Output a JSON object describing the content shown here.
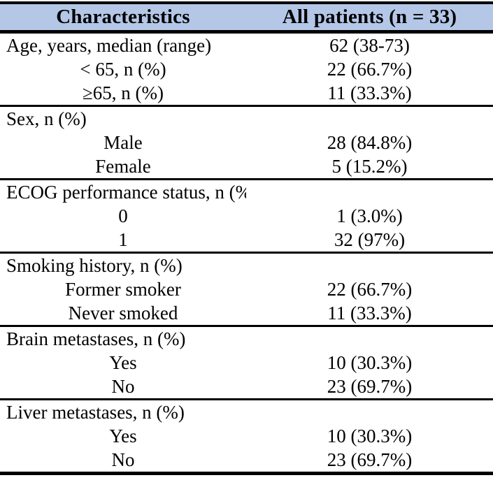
{
  "table": {
    "columns": [
      "Characteristics",
      "All patients (n = 33)"
    ],
    "sections": [
      {
        "label": "Age, years, median (range)",
        "value": "62 (38-73)",
        "rows": [
          {
            "label": "< 65, n (%)",
            "value": "22 (66.7%)"
          },
          {
            "label": "≥65, n (%)",
            "value": "11 (33.3%)"
          }
        ]
      },
      {
        "label": "Sex, n (%)",
        "value": "",
        "rows": [
          {
            "label": "Male",
            "value": "28 (84.8%)"
          },
          {
            "label": "Female",
            "value": "5 (15.2%)"
          }
        ]
      },
      {
        "label": "ECOG performance status, n (%)",
        "value": "",
        "rows": [
          {
            "label": "0",
            "value": "1 (3.0%)"
          },
          {
            "label": "1",
            "value": "32 (97%)"
          }
        ]
      },
      {
        "label": "Smoking history, n (%)",
        "value": "",
        "rows": [
          {
            "label": "Former smoker",
            "value": "22 (66.7%)"
          },
          {
            "label": "Never smoked",
            "value": "11 (33.3%)"
          }
        ]
      },
      {
        "label": "Brain metastases, n (%)",
        "value": "",
        "rows": [
          {
            "label": "Yes",
            "value": "10 (30.3%)"
          },
          {
            "label": "No",
            "value": "23 (69.7%)"
          }
        ]
      },
      {
        "label": "Liver metastases, n (%)",
        "value": "",
        "rows": [
          {
            "label": "Yes",
            "value": "10 (30.3%)"
          },
          {
            "label": "No",
            "value": "23 (69.7%)"
          }
        ]
      }
    ],
    "colors": {
      "header_bg": "#b4c7e7",
      "border": "#000000",
      "text": "#000000"
    }
  }
}
